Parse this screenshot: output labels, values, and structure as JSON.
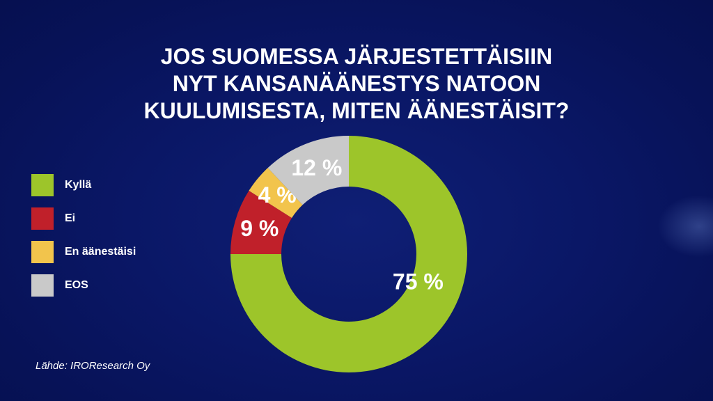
{
  "title_lines": [
    "JOS SUOMESSA JÄRJESTETTÄISIIN",
    "NYT KANSANÄÄNESTYS NATOON",
    "KUULUMISESTA, MITEN ÄÄNESTÄISIT?"
  ],
  "source": "Lähde: IROResearch Oy",
  "chart_data": {
    "type": "pie",
    "title": "JOS SUOMESSA JÄRJESTETTÄISIIN NYT KANSANÄÄNESTYS NATOON KUULUMISESTA, MITEN ÄÄNESTÄISIT?",
    "donut": true,
    "legend_position": "left",
    "slices": [
      {
        "name": "Kyllä",
        "value": 75,
        "label": "75 %",
        "color": "#9dc52a"
      },
      {
        "name": "Ei",
        "value": 9,
        "label": "9 %",
        "color": "#c0202a"
      },
      {
        "name": "En äänestäisi",
        "value": 4,
        "label": "4 %",
        "color": "#f2c44c"
      },
      {
        "name": "EOS",
        "value": 12,
        "label": "12 %",
        "color": "#c9c9c9"
      }
    ]
  }
}
